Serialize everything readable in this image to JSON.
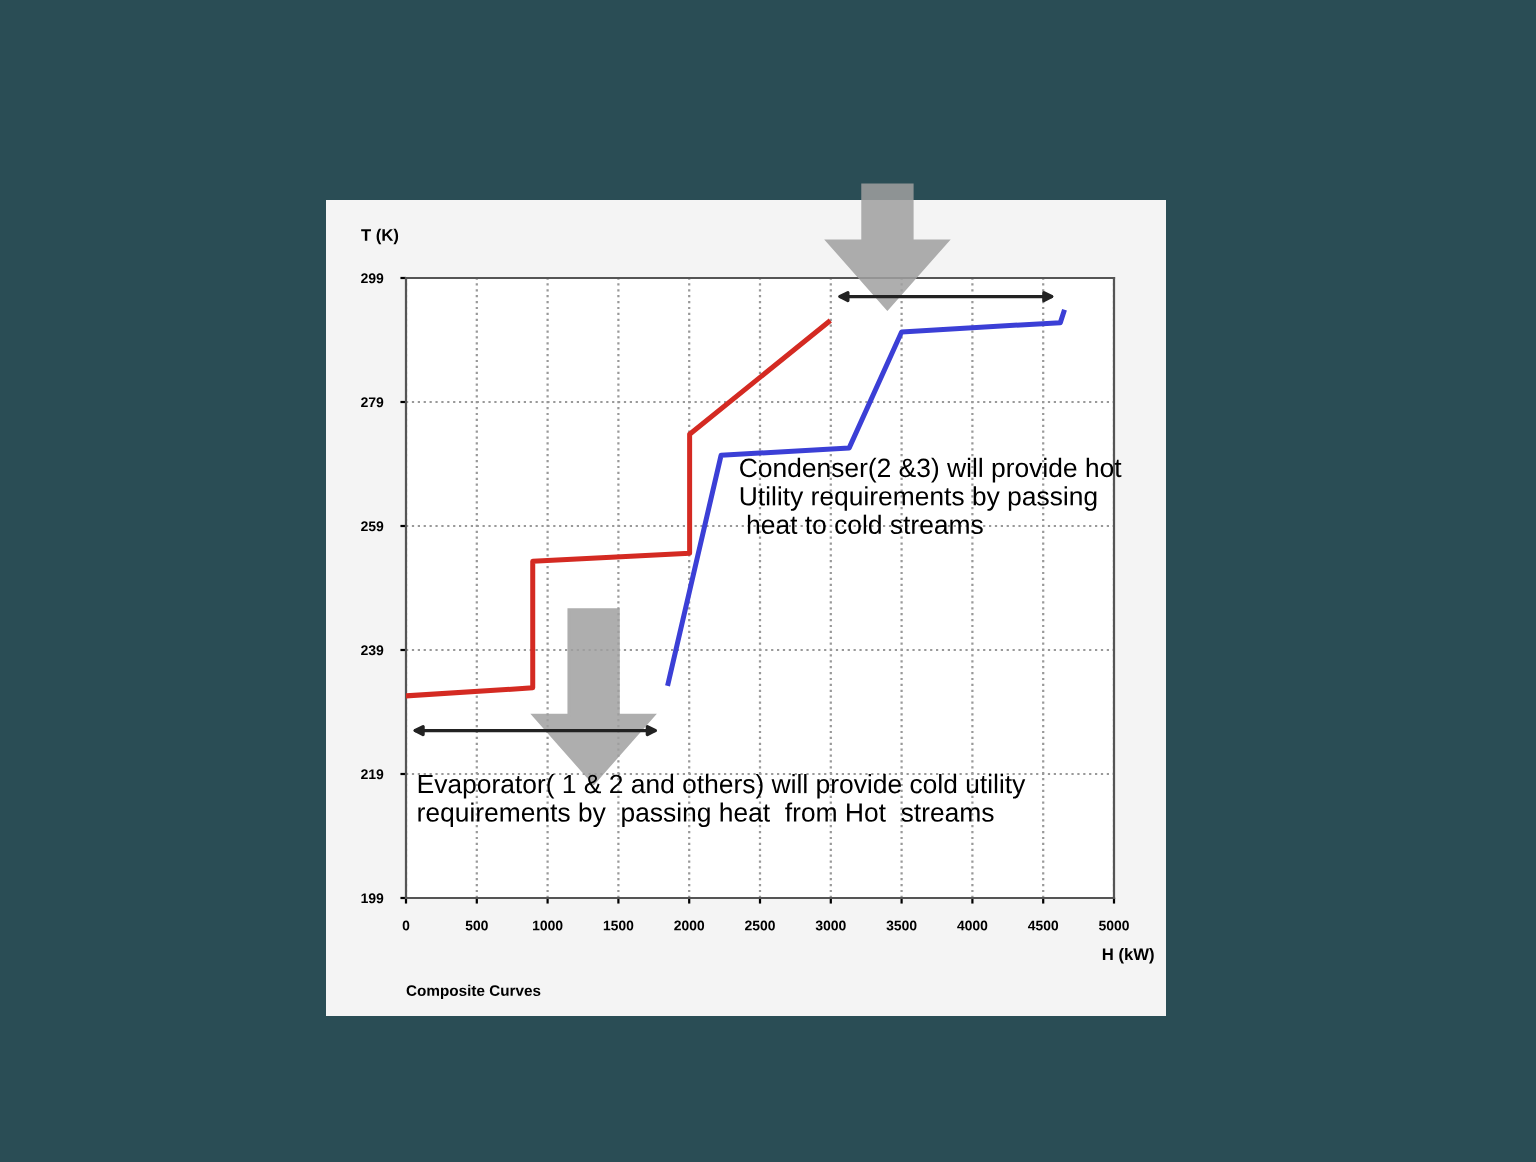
{
  "chart_data": {
    "type": "line",
    "ylabel": "T (K)",
    "xlabel": "H (kW)",
    "annotations": [
      "Condenser(2 &3) will provide hot\nUtility requirements by passing\n heat to cold streams",
      "Evaporator( 1 & 2 and others) will provide cold utility\nrequirements by  passing heat  from Hot  streams",
      "Composite Curves"
    ],
    "series": [
      {
        "color": "#d42a22",
        "x": [
          0,
          895,
          895,
          2003,
          2003,
          2983
        ],
        "values": [
          231.6,
          232.9,
          253.3,
          254.6,
          273.8,
          291.9
        ]
      },
      {
        "color": "#3b3fd6",
        "x": [
          1851,
          2225,
          3130,
          3500,
          4621,
          4645
        ],
        "values": [
          233.6,
          270.4,
          271.6,
          290.3,
          291.8,
          293.5
        ]
      }
    ],
    "xlim": [
      0,
      5000
    ],
    "xticks": [
      0,
      500,
      1000,
      1500,
      2000,
      2500,
      3000,
      3500,
      4000,
      4500,
      5000
    ],
    "ylim": [
      199,
      299
    ],
    "yticks": [
      199,
      219,
      239,
      259,
      279,
      299
    ],
    "grid": true,
    "line_style": "solid",
    "marker": "none"
  }
}
